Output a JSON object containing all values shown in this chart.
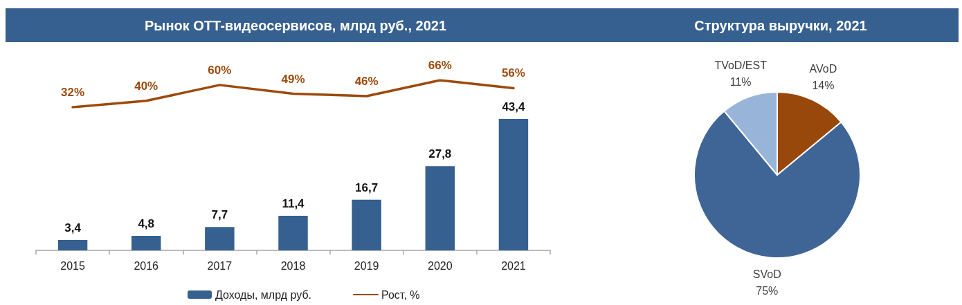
{
  "chart_data": [
    {
      "type": "line",
      "title": "Рынок OTT-видеосервисов, млрд руб., 2021",
      "categories": [
        "2015",
        "2016",
        "2017",
        "2018",
        "2019",
        "2020",
        "2021"
      ],
      "series": [
        {
          "name": "Рост, %",
          "color": "#9c4a0c",
          "values": [
            32,
            40,
            60,
            49,
            46,
            66,
            56
          ],
          "value_labels": [
            "32%",
            "40%",
            "60%",
            "49%",
            "46%",
            "66%",
            "56%"
          ]
        }
      ],
      "legend": "bottom",
      "tick_labels": false
    },
    {
      "type": "bar",
      "categories": [
        "2015",
        "2016",
        "2017",
        "2018",
        "2019",
        "2020",
        "2021"
      ],
      "series": [
        {
          "name": "Доходы, млрд руб.",
          "color": "#36608f",
          "values": [
            3.4,
            4.8,
            7.7,
            11.4,
            16.7,
            27.8,
            43.4
          ],
          "value_labels": [
            "3,4",
            "4,8",
            "7,7",
            "11,4",
            "16,7",
            "27,8",
            "43,4"
          ]
        }
      ],
      "legend": "bottom",
      "tick_labels": "x"
    },
    {
      "type": "pie",
      "title": "Структура выручки, 2021",
      "categories": [
        "AVoD",
        "SVoD",
        "TVoD/EST"
      ],
      "values": [
        14,
        75,
        11
      ],
      "value_labels": [
        "14%",
        "75%",
        "11%"
      ],
      "colors": [
        "#98480a",
        "#3e6596",
        "#98b4d8"
      ]
    }
  ]
}
